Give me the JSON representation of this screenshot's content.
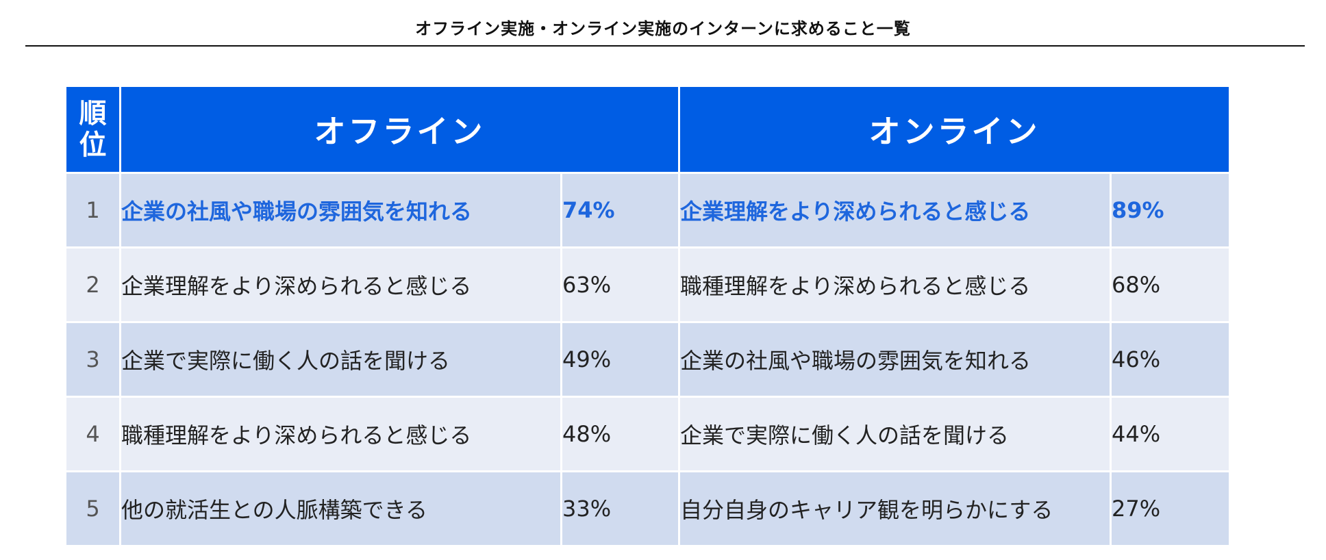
{
  "title": "オフライン実施・オンライン実施のインターンに求めること一覧",
  "header": {
    "rank": "順位",
    "offline": "オフライン",
    "online": "オンライン"
  },
  "colors": {
    "header_bg": "#005de4",
    "row_dark": "#d0dbef",
    "row_light": "#e9edf6",
    "highlight_text": "#1e66dd"
  },
  "rows": [
    {
      "rank": "1",
      "offline_item": "企業の社風や職場の雰囲気を知れる",
      "offline_pct": "74%",
      "online_item": "企業理解をより深められると感じる",
      "online_pct": "89%"
    },
    {
      "rank": "2",
      "offline_item": "企業理解をより深められると感じる",
      "offline_pct": "63%",
      "online_item": "職種理解をより深められると感じる",
      "online_pct": "68%"
    },
    {
      "rank": "3",
      "offline_item": "企業で実際に働く人の話を聞ける",
      "offline_pct": "49%",
      "online_item": "企業の社風や職場の雰囲気を知れる",
      "online_pct": "46%"
    },
    {
      "rank": "4",
      "offline_item": "職種理解をより深められると感じる",
      "offline_pct": "48%",
      "online_item": "企業で実際に働く人の話を聞ける",
      "online_pct": "44%"
    },
    {
      "rank": "5",
      "offline_item": "他の就活生との人脈構築できる",
      "offline_pct": "33%",
      "online_item": "自分自身のキャリア観を明らかにする",
      "online_pct": "27%"
    }
  ]
}
